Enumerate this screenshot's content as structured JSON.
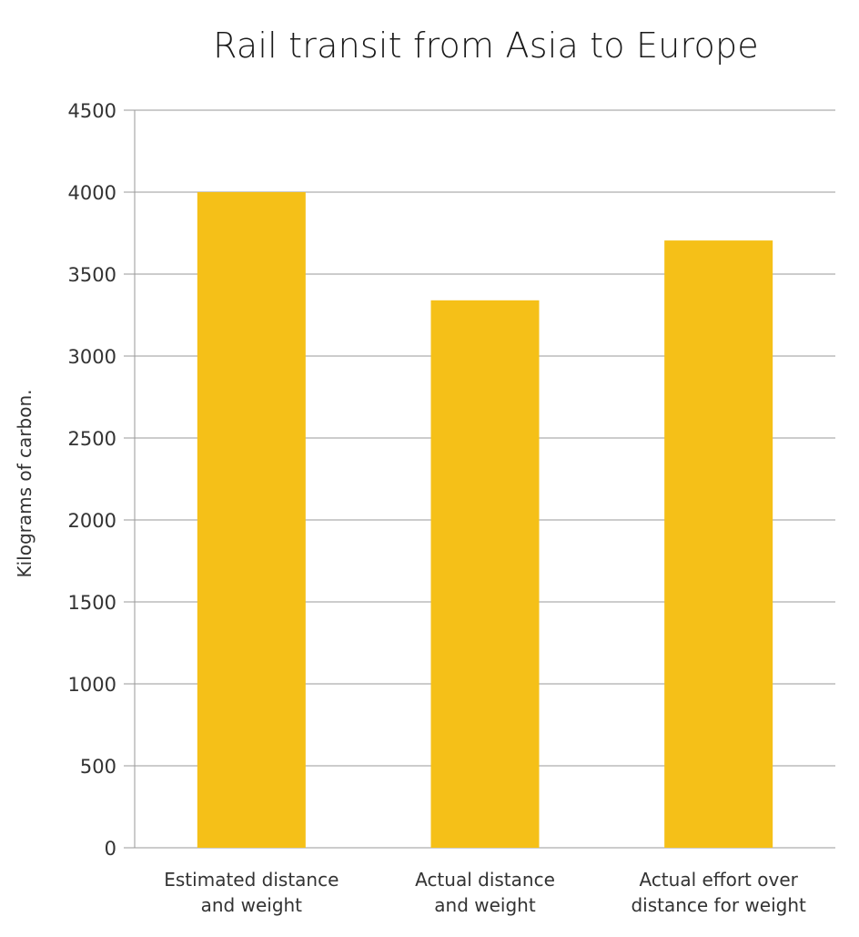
{
  "chart_data": {
    "type": "bar",
    "title": "Rail transit from Asia to Europe",
    "ylabel": "Kilograms of carbon.",
    "xlabel": "",
    "categories": [
      [
        "Estimated distance",
        "and weight"
      ],
      [
        "Actual distance",
        "and weight"
      ],
      [
        "Actual effort over",
        "distance for weight"
      ]
    ],
    "values": [
      4000,
      3340,
      3705
    ],
    "ylim": [
      0,
      4500
    ],
    "yticks": [
      0,
      500,
      1000,
      1500,
      2000,
      2500,
      3000,
      3500,
      4000,
      4500
    ],
    "grid": true,
    "legend": "none",
    "bar_color": "#F5C018",
    "grid_color": "#9a9a9a"
  }
}
